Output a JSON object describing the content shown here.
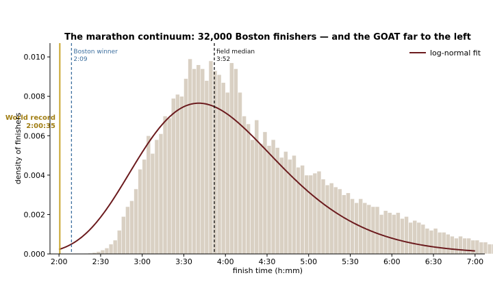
{
  "chart_data": {
    "type": "histogram",
    "title": "The marathon continuum: 32,000 Boston finishers — and the GOAT far to the left",
    "xlabel": "finish time (h:mm)",
    "ylabel": "density of finishers",
    "x_unit": "minutes",
    "xlim": [
      113.5,
      427
    ],
    "ylim": [
      0,
      0.0107
    ],
    "x_ticks": [
      {
        "value": 120,
        "label": "2:00"
      },
      {
        "value": 150,
        "label": "2:30"
      },
      {
        "value": 180,
        "label": "3:00"
      },
      {
        "value": 210,
        "label": "3:30"
      },
      {
        "value": 240,
        "label": "4:00"
      },
      {
        "value": 270,
        "label": "4:30"
      },
      {
        "value": 300,
        "label": "5:00"
      },
      {
        "value": 330,
        "label": "5:30"
      },
      {
        "value": 360,
        "label": "6:00"
      },
      {
        "value": 390,
        "label": "6:30"
      },
      {
        "value": 420,
        "label": "7:00"
      }
    ],
    "y_ticks": [
      {
        "value": 0,
        "label": "0.000"
      },
      {
        "value": 0.002,
        "label": "0.002"
      },
      {
        "value": 0.004,
        "label": "0.004"
      },
      {
        "value": 0.006,
        "label": "0.006"
      },
      {
        "value": 0.008,
        "label": "0.008"
      },
      {
        "value": 0.01,
        "label": "0.010"
      }
    ],
    "histogram": {
      "bin_start": 138,
      "bin_width": 3,
      "color": "#d9d0c3",
      "values": [
        2e-05,
        4e-05,
        7e-05,
        0.00012,
        0.0002,
        0.0003,
        0.0005,
        0.0007,
        0.0012,
        0.0019,
        0.0024,
        0.0027,
        0.0033,
        0.0043,
        0.0048,
        0.006,
        0.0051,
        0.0058,
        0.0061,
        0.007,
        0.0069,
        0.0079,
        0.0081,
        0.008,
        0.0089,
        0.0099,
        0.0094,
        0.0096,
        0.0094,
        0.0088,
        0.0098,
        0.0093,
        0.0091,
        0.0087,
        0.0082,
        0.0097,
        0.0094,
        0.0082,
        0.007,
        0.0066,
        0.0058,
        0.0068,
        0.0056,
        0.0062,
        0.0055,
        0.0058,
        0.0054,
        0.0049,
        0.0052,
        0.0048,
        0.005,
        0.0044,
        0.0045,
        0.004,
        0.004,
        0.0041,
        0.0042,
        0.0038,
        0.0035,
        0.0036,
        0.0034,
        0.0033,
        0.003,
        0.0031,
        0.0028,
        0.0026,
        0.0028,
        0.0026,
        0.0025,
        0.0024,
        0.0024,
        0.002,
        0.0022,
        0.0021,
        0.002,
        0.0021,
        0.0018,
        0.0019,
        0.0016,
        0.0017,
        0.0016,
        0.0015,
        0.0013,
        0.0012,
        0.0013,
        0.0011,
        0.0011,
        0.001,
        0.0009,
        0.0008,
        0.0009,
        0.0008,
        0.0008,
        0.0007,
        0.0007,
        0.0006,
        0.0006,
        0.0005,
        0.0005,
        0.0004
      ]
    },
    "fit": {
      "name": "log-normal fit",
      "distribution": "lognormal",
      "mu": 5.45,
      "sigma": 0.23,
      "x_range": [
        120,
        420
      ],
      "color": "#6b1a1d"
    },
    "reference_lines": [
      {
        "id": "world-record",
        "x": 120.58,
        "style": "solid",
        "color": "#c8a42b",
        "label": [
          "World record",
          "2:00:35"
        ],
        "label_color": "#a07d12"
      },
      {
        "id": "boston-winner",
        "x": 129,
        "style": "dashed",
        "color": "#3b6e9e",
        "label": [
          "Boston winner",
          "2:09"
        ],
        "label_color": "#3b6e9e"
      },
      {
        "id": "field-median",
        "x": 232,
        "style": "dashed",
        "color": "#111111",
        "label": [
          "field median",
          "3:52"
        ],
        "label_color": "#111111"
      }
    ],
    "legend": {
      "position": "top-right",
      "entries": [
        "log-normal fit"
      ]
    },
    "grid": false
  }
}
